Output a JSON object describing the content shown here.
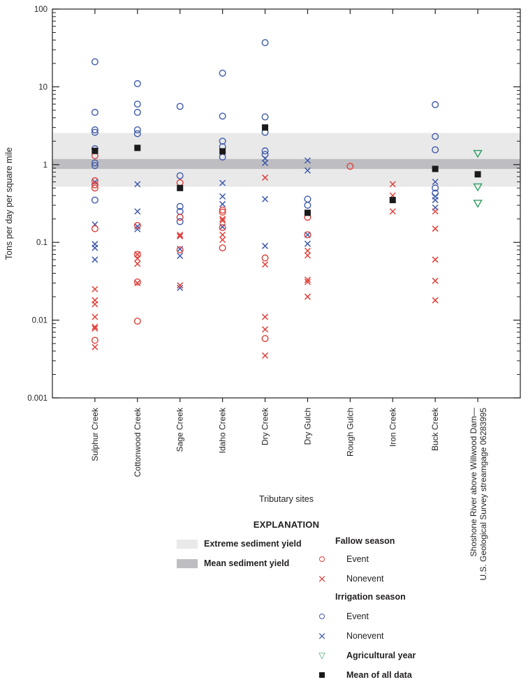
{
  "colors": {
    "fallow_red": "#e0403a",
    "irrigation_blue": "#3f5aa9",
    "agricultural_green": "#2e9e62",
    "mean_black": "#1a1a1a",
    "extreme_band_gray": "#e9e9ea",
    "mean_band_gray": "#bdbdc2"
  },
  "chart_data": {
    "type": "scatter",
    "y_scale": "log",
    "ylim": [
      0.001,
      100
    ],
    "y_ticks": [
      100,
      10,
      1,
      0.1,
      0.01,
      0.001
    ],
    "y_tick_labels": [
      "100",
      "10",
      "1",
      "0.1",
      "0.01",
      "0.001"
    ],
    "ylabel": "Tons per day per square mile",
    "xlabel": "Tributary sites",
    "grid": false,
    "bands": [
      {
        "name": "extreme_sediment_yield",
        "from": 0.52,
        "to": 2.55,
        "color": "#e9e9ea"
      },
      {
        "name": "mean_sediment_yield",
        "from": 0.88,
        "to": 1.18,
        "color": "#bdbdc2"
      }
    ],
    "sites": [
      {
        "label": "Sulphur Creek"
      },
      {
        "label": "Cottonwood Creek"
      },
      {
        "label": "Sage Creek"
      },
      {
        "label": "Idaho Creek"
      },
      {
        "label": "Dry Creek"
      },
      {
        "label": "Dry Gulch"
      },
      {
        "label": "Rough Gulch"
      },
      {
        "label": "Iron Creek"
      },
      {
        "label": "Buck Creek"
      },
      {
        "label": "Shoshone River above Willwood Dam—",
        "label2": "U.S. Geological Survey streamgage 06283995"
      }
    ],
    "series": [
      {
        "id": "irrigation_nonevent",
        "group": "Irrigation season",
        "label": "Nonevent",
        "marker": "x",
        "color": "#3f5aa9",
        "values": [
          [
            0.6,
            0.17,
            0.095,
            0.085,
            0.06
          ],
          [
            0.56,
            0.25,
            0.16,
            0.148
          ],
          [
            0.12,
            0.082,
            0.067,
            0.026
          ],
          [
            0.58,
            0.39,
            0.31,
            0.158
          ],
          [
            1.2,
            1.05,
            0.36,
            0.09
          ],
          [
            1.13,
            0.84,
            0.125,
            0.096
          ],
          [],
          [],
          [
            0.6,
            0.39,
            0.35,
            0.28
          ],
          []
        ]
      },
      {
        "id": "irrigation_event",
        "group": "Irrigation season",
        "label": "Event",
        "marker": "circle",
        "color": "#3f5aa9",
        "values": [
          [
            21,
            4.7,
            2.8,
            2.6,
            1.6,
            1.05,
            0.97,
            0.35
          ],
          [
            11,
            6.0,
            4.7,
            2.8,
            2.5
          ],
          [
            5.6,
            0.72,
            0.29,
            0.25,
            0.185
          ],
          [
            15,
            4.2,
            2.0,
            1.7,
            1.25
          ],
          [
            37,
            4.1,
            2.6,
            1.5,
            1.35
          ],
          [
            0.36,
            0.3
          ],
          [],
          [],
          [
            5.9,
            2.3,
            1.55,
            0.5,
            0.43
          ],
          []
        ]
      },
      {
        "id": "fallow_nonevent",
        "group": "Fallow season",
        "label": "Nonevent",
        "marker": "x",
        "color": "#e0403a",
        "values": [
          [
            0.025,
            0.018,
            0.016,
            0.011,
            0.0082,
            0.0078,
            0.0045
          ],
          [
            0.07,
            0.062,
            0.053,
            0.03
          ],
          [
            0.125,
            0.12,
            0.028
          ],
          [
            0.2,
            0.19,
            0.125,
            0.108
          ],
          [
            0.68,
            0.052,
            0.011,
            0.0076,
            0.0035
          ],
          [
            0.078,
            0.068,
            0.033,
            0.031,
            0.02
          ],
          [],
          [
            0.56,
            0.4,
            0.25
          ],
          [
            0.25,
            0.15,
            0.06,
            0.032,
            0.018
          ],
          []
        ]
      },
      {
        "id": "fallow_event",
        "group": "Fallow season",
        "label": "Event",
        "marker": "circle",
        "color": "#e0403a",
        "values": [
          [
            1.3,
            0.62,
            0.55,
            0.5,
            0.15,
            0.0055
          ],
          [
            0.165,
            0.07,
            0.031,
            0.0097
          ],
          [
            0.585,
            0.21,
            0.08
          ],
          [
            0.26,
            0.245,
            0.155,
            0.085
          ],
          [
            0.063,
            0.0058
          ],
          [
            0.21,
            0.125
          ],
          [
            0.95
          ],
          [],
          [],
          []
        ]
      },
      {
        "id": "agricultural_year",
        "group": "",
        "label": "Agricultural year",
        "marker": "triangle-down",
        "color": "#2e9e62",
        "values": [
          [],
          [],
          [],
          [],
          [],
          [],
          [],
          [],
          [],
          [
            1.4,
            0.52,
            0.32
          ]
        ]
      },
      {
        "id": "mean_of_all_data",
        "group": "",
        "label": "Mean of all data",
        "marker": "square",
        "color": "#1a1a1a",
        "values": [
          [
            1.5
          ],
          [
            1.64
          ],
          [
            0.5
          ],
          [
            1.48
          ],
          [
            3.0
          ],
          [
            0.24
          ],
          [],
          [
            0.35
          ],
          [
            0.88
          ],
          [
            0.75
          ]
        ]
      }
    ]
  },
  "explanation": {
    "title": "EXPLANATION",
    "band_items": [
      {
        "swatch": "light-gray-swatch",
        "label": "Extreme sediment yield"
      },
      {
        "swatch": "dark-gray-swatch",
        "label": "Mean sediment yield"
      }
    ],
    "groups": [
      {
        "header": "Fallow season",
        "items": [
          {
            "icon": "red-circle-outline-icon",
            "label": "Event"
          },
          {
            "icon": "red-x-mark-icon",
            "label": "Nonevent"
          }
        ]
      },
      {
        "header": "Irrigation season",
        "items": [
          {
            "icon": "blue-circle-outline-icon",
            "label": "Event"
          },
          {
            "icon": "blue-x-mark-icon",
            "label": "Nonevent"
          }
        ]
      }
    ],
    "singles": [
      {
        "icon": "green-triangle-down-icon",
        "label": "Agricultural year"
      },
      {
        "icon": "black-square-icon",
        "label": "Mean of all data"
      }
    ]
  }
}
